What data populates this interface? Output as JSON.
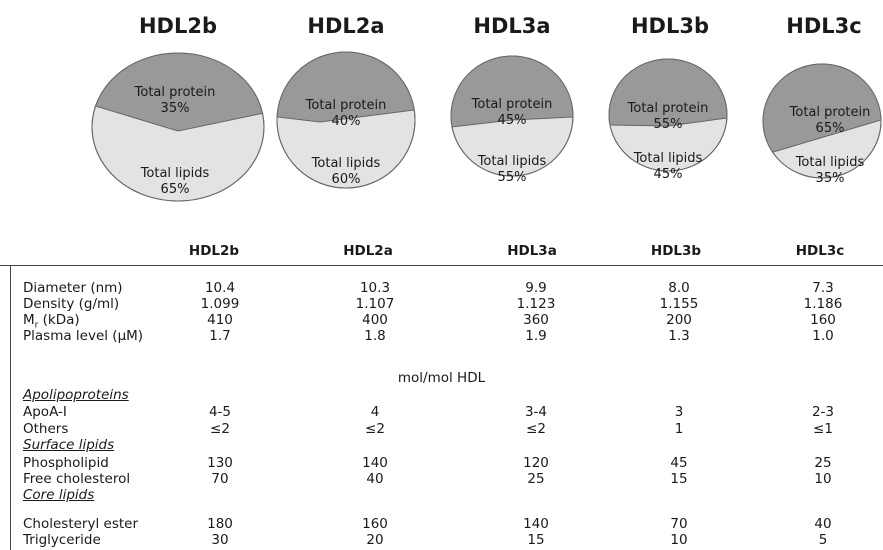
{
  "chart_data": [
    {
      "type": "pie",
      "title": "HDL2b",
      "slices": [
        {
          "label": "Total protein",
          "value": 35,
          "value_label": "35%",
          "color": "#999999"
        },
        {
          "label": "Total lipids",
          "value": 65,
          "value_label": "65%",
          "color": "#e3e3e3"
        }
      ]
    },
    {
      "type": "pie",
      "title": "HDL2a",
      "slices": [
        {
          "label": "Total protein",
          "value": 40,
          "value_label": "40%",
          "color": "#999999"
        },
        {
          "label": "Total lipids",
          "value": 60,
          "value_label": "60%",
          "color": "#e3e3e3"
        }
      ]
    },
    {
      "type": "pie",
      "title": "HDL3a",
      "slices": [
        {
          "label": "Total protein",
          "value": 45,
          "value_label": "45%",
          "color": "#999999"
        },
        {
          "label": "Total lipids",
          "value": 55,
          "value_label": "55%",
          "color": "#e3e3e3"
        }
      ]
    },
    {
      "type": "pie",
      "title": "HDL3b",
      "slices": [
        {
          "label": "Total protein",
          "value": 55,
          "value_label": "55%",
          "color": "#999999"
        },
        {
          "label": "Total lipids",
          "value": 45,
          "value_label": "45%",
          "color": "#e3e3e3"
        }
      ]
    },
    {
      "type": "pie",
      "title": "HDL3c",
      "slices": [
        {
          "label": "Total protein",
          "value": 65,
          "value_label": "65%",
          "color": "#999999"
        },
        {
          "label": "Total lipids",
          "value": 35,
          "value_label": "35%",
          "color": "#e3e3e3"
        }
      ]
    },
    {
      "type": "table",
      "columns": [
        "HDL2b",
        "HDL2a",
        "HDL3a",
        "HDL3b",
        "HDL3c"
      ],
      "unit_note": "mol/mol HDL",
      "rows": [
        {
          "label": "Diameter (nm)",
          "values": [
            "10.4",
            "10.3",
            "9.9",
            "8.0",
            "7.3"
          ]
        },
        {
          "label": "Density (g/ml)",
          "values": [
            "1.099",
            "1.107",
            "1.123",
            "1.155",
            "1.186"
          ]
        },
        {
          "label_main": "M",
          "label_sub": "r",
          "label_rest": " (kDa)",
          "values": [
            "410",
            "400",
            "360",
            "200",
            "160"
          ]
        },
        {
          "label": "Plasma level (μM)",
          "values": [
            "1.7",
            "1.8",
            "1.9",
            "1.3",
            "1.0"
          ]
        },
        {
          "section": "Apolipoproteins"
        },
        {
          "label": "ApoA-I",
          "values": [
            "4-5",
            "4",
            "3-4",
            "3",
            "2-3"
          ]
        },
        {
          "label": "Others",
          "values": [
            "≤2",
            "≤2",
            "≤2",
            "1",
            "≤1"
          ]
        },
        {
          "section": "Surface lipids"
        },
        {
          "label": "Phospholipid",
          "values": [
            "130",
            "140",
            "120",
            "45",
            "25"
          ]
        },
        {
          "label": "Free cholesterol",
          "values": [
            "70",
            "40",
            "25",
            "15",
            "10"
          ]
        },
        {
          "section": "Core lipids"
        },
        {
          "label": "Cholesteryl ester",
          "values": [
            "180",
            "160",
            "140",
            "70",
            "40"
          ]
        },
        {
          "label": "Triglyceride",
          "values": [
            "30",
            "20",
            "15",
            "10",
            "5"
          ]
        }
      ]
    }
  ]
}
